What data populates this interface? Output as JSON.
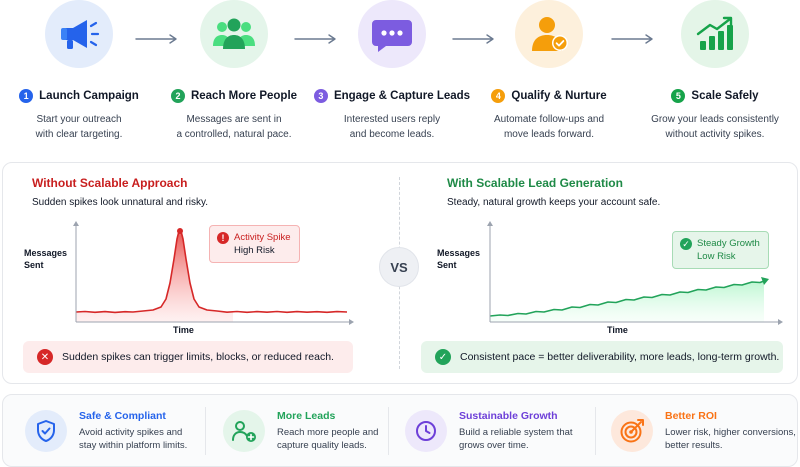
{
  "steps": [
    {
      "number": "1",
      "title": "Launch Campaign",
      "desc": [
        "Start your outreach",
        "with clear targeting."
      ],
      "icon": "megaphone-icon",
      "color": "#2563eb",
      "tint": "#e3ecfb"
    },
    {
      "number": "2",
      "title": "Reach More People",
      "desc": [
        "Messages are sent in",
        "a controlled, natural pace."
      ],
      "icon": "people-icon",
      "color": "#22a35a",
      "tint": "#e4f5ea"
    },
    {
      "number": "3",
      "title": "Engage & Capture Leads",
      "desc": [
        "Interested users reply",
        "and become leads."
      ],
      "icon": "chat-bubble-icon",
      "color": "#7c5ce0",
      "tint": "#ede8fb"
    },
    {
      "number": "4",
      "title": "Qualify & Nurture",
      "desc": [
        "Automate follow-ups and",
        "move leads forward."
      ],
      "icon": "user-check-icon",
      "color": "#f59e0b",
      "tint": "#fdf0dc"
    },
    {
      "number": "5",
      "title": "Scale Safely",
      "desc": [
        "Grow your leads consistently",
        "without activity spikes."
      ],
      "icon": "growth-chart-icon",
      "color": "#16a34a",
      "tint": "#e4f5e8"
    }
  ],
  "comparison": {
    "vs": "VS",
    "left": {
      "title": "Without Scalable Approach",
      "subtitle": "Sudden spikes look unnatural and risky.",
      "ylabel": [
        "Messages",
        "Sent"
      ],
      "xlabel": "Time",
      "callout": [
        "Activity Spike",
        "High Risk"
      ],
      "note": "Sudden spikes can trigger limits, blocks, or reduced reach.",
      "color": "#d62828"
    },
    "right": {
      "title": "With Scalable Lead Generation",
      "subtitle": "Steady, natural growth keeps your account safe.",
      "ylabel": [
        "Messages",
        "Sent"
      ],
      "xlabel": "Time",
      "callout": [
        "Steady Growth",
        "Low Risk"
      ],
      "note": "Consistent pace = better deliverability, more leads, long-term growth.",
      "color": "#22a35a"
    }
  },
  "benefits": [
    {
      "title": "Safe & Compliant",
      "desc": [
        "Avoid activity spikes and",
        "stay within platform limits."
      ],
      "icon": "shield-check-icon",
      "color": "#2563eb"
    },
    {
      "title": "More Leads",
      "desc": [
        "Reach more people and",
        "capture quality leads."
      ],
      "icon": "add-users-icon",
      "color": "#22a35a"
    },
    {
      "title": "Sustainable Growth",
      "desc": [
        "Build a reliable system that",
        "grows over time."
      ],
      "icon": "clock-icon",
      "color": "#6d3fd8"
    },
    {
      "title": "Better ROI",
      "desc": [
        "Lower risk, higher conversions,",
        "better results."
      ],
      "icon": "target-icon",
      "color": "#f97316"
    }
  ]
}
